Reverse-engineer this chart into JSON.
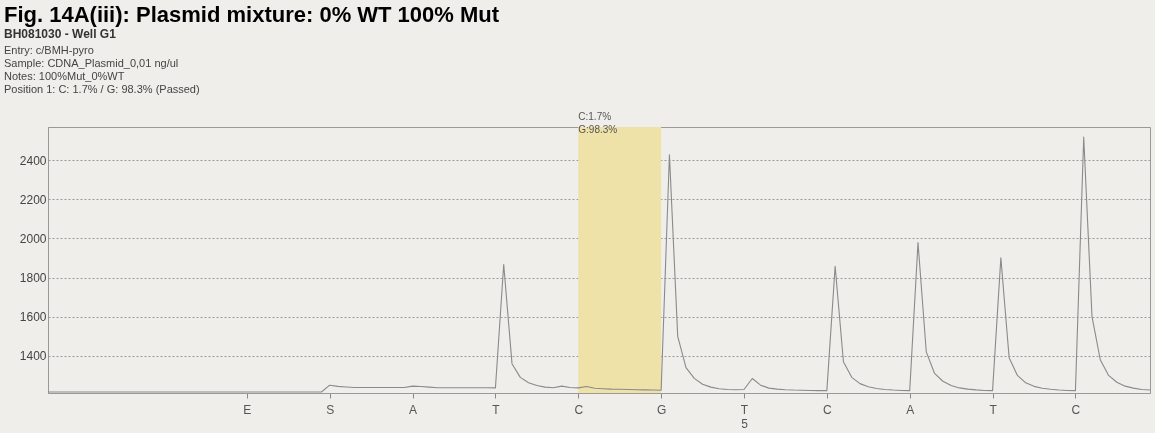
{
  "chart_data": {
    "type": "line",
    "title": "Fig. 14A(iii): Plasmid mixture: 0% WT 100% Mut",
    "subtitle": "BH081030 - Well G1",
    "annotations": [
      "Entry: c/BMH-pyro",
      "Sample: CDNA_Plasmid_0,01 ng/ul",
      "Notes: 100%Mut_0%WT",
      "Position 1: C: 1.7% / G: 98.3% (Passed)"
    ],
    "categories": [
      null,
      null,
      null,
      null,
      null,
      null,
      null,
      null,
      null,
      null,
      null,
      null,
      null,
      null,
      null,
      null,
      null,
      null,
      null,
      null,
      null,
      null,
      null,
      null,
      "E",
      null,
      null,
      null,
      null,
      null,
      null,
      null,
      null,
      null,
      "S",
      null,
      null,
      null,
      null,
      null,
      null,
      null,
      null,
      null,
      "A",
      null,
      null,
      null,
      null,
      null,
      null,
      null,
      null,
      null,
      "T",
      null,
      null,
      null,
      null,
      null,
      null,
      null,
      null,
      null,
      "C",
      null,
      null,
      null,
      null,
      null,
      null,
      null,
      null,
      null,
      "G",
      null,
      null,
      null,
      null,
      null,
      null,
      null,
      null,
      null,
      "T\n5",
      null,
      null,
      null,
      null,
      null,
      null,
      null,
      null,
      null,
      "C",
      null,
      null,
      null,
      null,
      null,
      null,
      null,
      null,
      null,
      "A",
      null,
      null,
      null,
      null,
      null,
      null,
      null,
      null,
      null,
      "T",
      null,
      null,
      null,
      null,
      null,
      null,
      null,
      null,
      null,
      "C",
      null,
      null,
      null,
      null,
      null,
      null,
      null,
      null,
      null
    ],
    "series": [
      {
        "color": "#8a8a8a",
        "values": [
          1215,
          1215,
          1215,
          1215,
          1215,
          1215,
          1215,
          1215,
          1215,
          1215,
          1215,
          1215,
          1215,
          1215,
          1215,
          1215,
          1215,
          1215,
          1215,
          1215,
          1215,
          1215,
          1215,
          1215,
          1215,
          1215,
          1215,
          1215,
          1215,
          1215,
          1215,
          1215,
          1215,
          1215,
          1250,
          1244,
          1241,
          1238,
          1238,
          1238,
          1238,
          1238,
          1238,
          1238,
          1245,
          1243,
          1240,
          1237,
          1237,
          1237,
          1237,
          1237,
          1237,
          1237,
          1236,
          1867,
          1360,
          1290,
          1262,
          1248,
          1240,
          1237,
          1245,
          1238,
          1236,
          1243,
          1234,
          1232,
          1230,
          1229,
          1228,
          1227,
          1226,
          1225,
          1224,
          2428,
          1500,
          1340,
          1285,
          1255,
          1240,
          1232,
          1228,
          1227,
          1228,
          1284,
          1250,
          1235,
          1230,
          1227,
          1225,
          1224,
          1223,
          1222,
          1222,
          1858,
          1370,
          1290,
          1258,
          1242,
          1233,
          1228,
          1225,
          1223,
          1222,
          1979,
          1420,
          1310,
          1270,
          1248,
          1236,
          1230,
          1226,
          1223,
          1222,
          1901,
          1390,
          1300,
          1262,
          1244,
          1234,
          1229,
          1225,
          1223,
          1222,
          2518,
          1600,
          1380,
          1300,
          1265,
          1245,
          1235,
          1228,
          1225
        ]
      }
    ],
    "ylim": [
      1210,
      2570
    ],
    "yticks": [
      1400,
      1600,
      1800,
      2000,
      2200,
      2400
    ],
    "bands": [
      {
        "axis": "x",
        "from": "C",
        "to": "G",
        "label": "C:1.7%\nG:98.3%",
        "color": "#efe2a8"
      }
    ],
    "grid": "y"
  }
}
